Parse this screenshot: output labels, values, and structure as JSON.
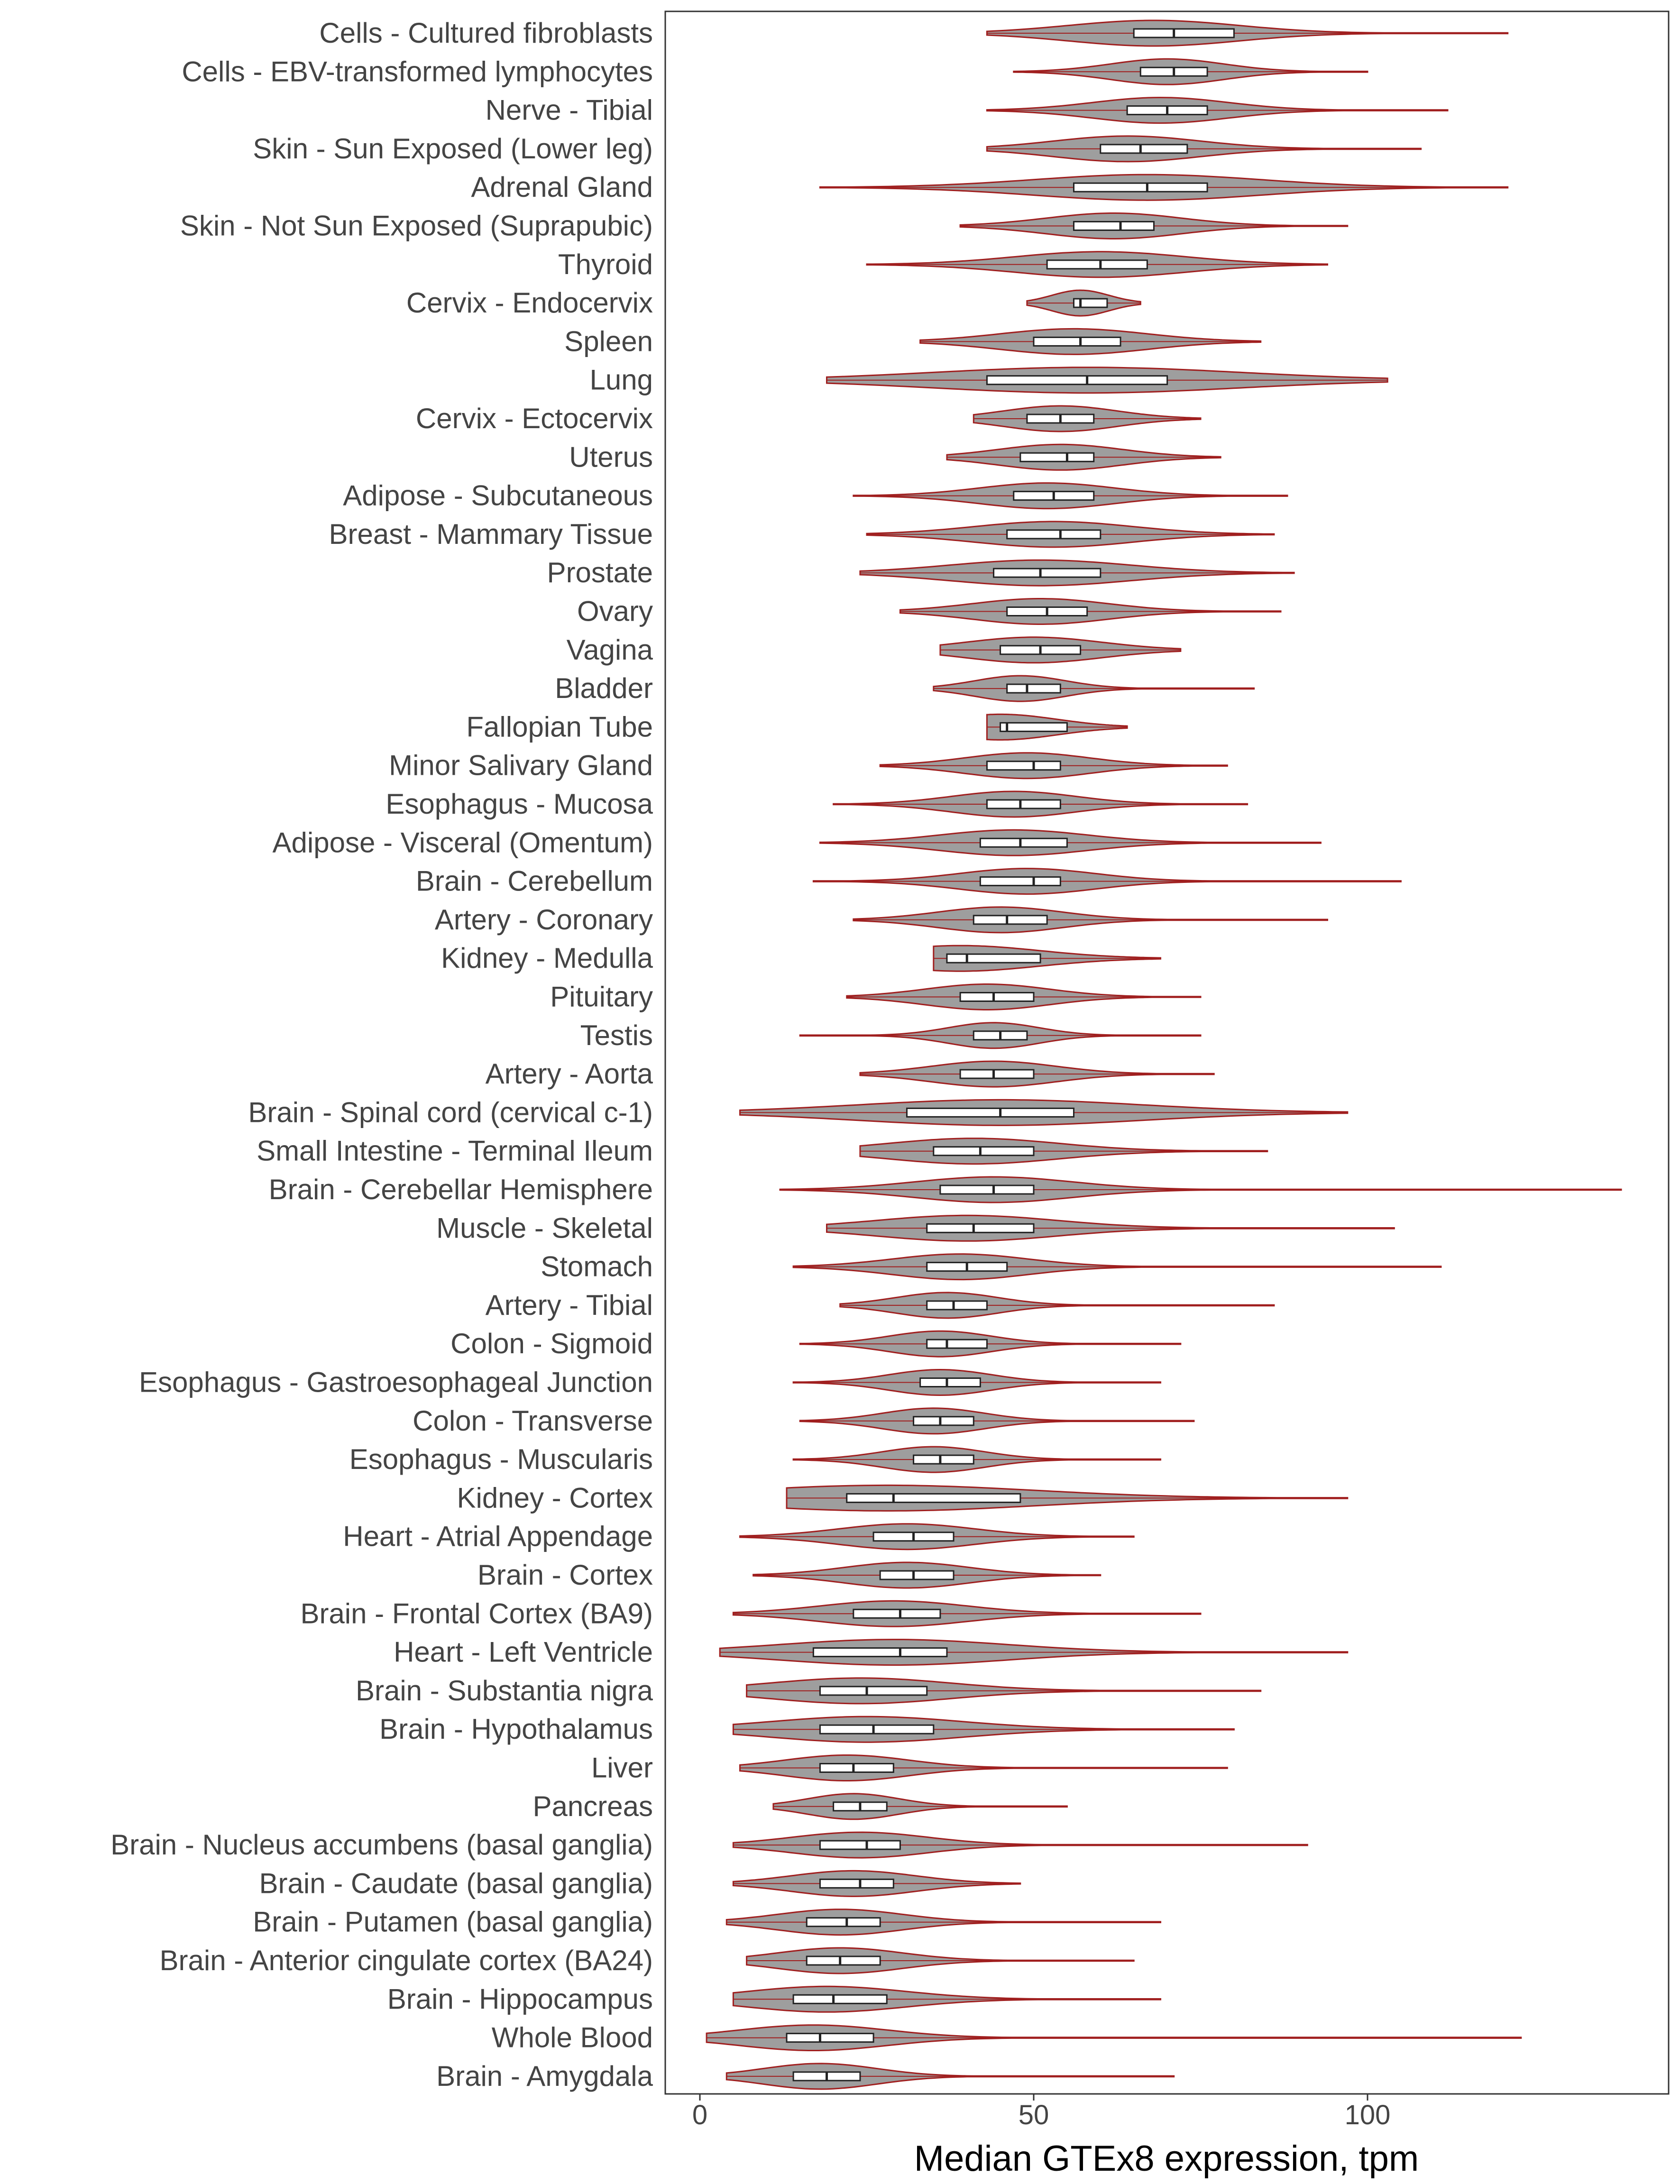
{
  "chart_data": {
    "type": "violin",
    "xlabel": "Median GTEx8 expression, tpm",
    "ylabel": "",
    "xlim": [
      -5,
      143
    ],
    "xticks": [
      0,
      50,
      100
    ],
    "grid": false,
    "colors": {
      "fill": "#9e9e9e",
      "outline": "#a01f1f",
      "box": "#ffffff",
      "text": "#444444",
      "frame": "#333333"
    },
    "series": [
      {
        "tissue": "Cells - Cultured fibroblasts",
        "min": 43,
        "q1": 65,
        "median": 71,
        "q3": 80,
        "max": 121,
        "peak": 68
      },
      {
        "tissue": "Cells - EBV-transformed lymphocytes",
        "min": 47,
        "q1": 66,
        "median": 71,
        "q3": 76,
        "max": 100,
        "peak": 70
      },
      {
        "tissue": "Nerve - Tibial",
        "min": 43,
        "q1": 64,
        "median": 70,
        "q3": 76,
        "max": 112,
        "peak": 69
      },
      {
        "tissue": "Skin - Sun Exposed (Lower leg)",
        "min": 43,
        "q1": 60,
        "median": 66,
        "q3": 73,
        "max": 108,
        "peak": 64
      },
      {
        "tissue": "Adrenal Gland",
        "min": 18,
        "q1": 56,
        "median": 67,
        "q3": 76,
        "max": 121,
        "peak": 67
      },
      {
        "tissue": "Skin - Not Sun Exposed (Suprapubic)",
        "min": 39,
        "q1": 56,
        "median": 63,
        "q3": 68,
        "max": 97,
        "peak": 62
      },
      {
        "tissue": "Thyroid",
        "min": 25,
        "q1": 52,
        "median": 60,
        "q3": 67,
        "max": 94,
        "peak": 60
      },
      {
        "tissue": "Cervix - Endocervix",
        "min": 49,
        "q1": 56,
        "median": 57,
        "q3": 61,
        "max": 66,
        "peak": 57
      },
      {
        "tissue": "Spleen",
        "min": 33,
        "q1": 50,
        "median": 57,
        "q3": 63,
        "max": 84,
        "peak": 56
      },
      {
        "tissue": "Lung",
        "min": 19,
        "q1": 43,
        "median": 58,
        "q3": 70,
        "max": 103,
        "peak": 58
      },
      {
        "tissue": "Cervix - Ectocervix",
        "min": 41,
        "q1": 49,
        "median": 54,
        "q3": 59,
        "max": 75,
        "peak": 54
      },
      {
        "tissue": "Uterus",
        "min": 37,
        "q1": 48,
        "median": 55,
        "q3": 59,
        "max": 78,
        "peak": 54
      },
      {
        "tissue": "Adipose - Subcutaneous",
        "min": 23,
        "q1": 47,
        "median": 53,
        "q3": 59,
        "max": 88,
        "peak": 52
      },
      {
        "tissue": "Breast - Mammary Tissue",
        "min": 25,
        "q1": 46,
        "median": 54,
        "q3": 60,
        "max": 86,
        "peak": 53
      },
      {
        "tissue": "Prostate",
        "min": 24,
        "q1": 44,
        "median": 51,
        "q3": 60,
        "max": 89,
        "peak": 51
      },
      {
        "tissue": "Ovary",
        "min": 30,
        "q1": 46,
        "median": 52,
        "q3": 58,
        "max": 87,
        "peak": 51
      },
      {
        "tissue": "Vagina",
        "min": 36,
        "q1": 45,
        "median": 51,
        "q3": 57,
        "max": 72,
        "peak": 50
      },
      {
        "tissue": "Bladder",
        "min": 35,
        "q1": 46,
        "median": 49,
        "q3": 54,
        "max": 83,
        "peak": 48
      },
      {
        "tissue": "Fallopian Tube",
        "min": 43,
        "q1": 45,
        "median": 46,
        "q3": 55,
        "max": 64,
        "peak": 45
      },
      {
        "tissue": "Minor Salivary Gland",
        "min": 27,
        "q1": 43,
        "median": 50,
        "q3": 54,
        "max": 79,
        "peak": 49
      },
      {
        "tissue": "Esophagus - Mucosa",
        "min": 20,
        "q1": 43,
        "median": 48,
        "q3": 54,
        "max": 82,
        "peak": 47
      },
      {
        "tissue": "Adipose - Visceral (Omentum)",
        "min": 18,
        "q1": 42,
        "median": 48,
        "q3": 55,
        "max": 93,
        "peak": 47
      },
      {
        "tissue": "Brain - Cerebellum",
        "min": 17,
        "q1": 42,
        "median": 50,
        "q3": 54,
        "max": 105,
        "peak": 49
      },
      {
        "tissue": "Artery - Coronary",
        "min": 23,
        "q1": 41,
        "median": 46,
        "q3": 52,
        "max": 94,
        "peak": 45
      },
      {
        "tissue": "Kidney - Medulla",
        "min": 35,
        "q1": 37,
        "median": 40,
        "q3": 51,
        "max": 69,
        "peak": 39
      },
      {
        "tissue": "Pituitary",
        "min": 22,
        "q1": 39,
        "median": 44,
        "q3": 50,
        "max": 75,
        "peak": 43
      },
      {
        "tissue": "Testis",
        "min": 15,
        "q1": 41,
        "median": 45,
        "q3": 49,
        "max": 75,
        "peak": 44
      },
      {
        "tissue": "Artery - Aorta",
        "min": 24,
        "q1": 39,
        "median": 44,
        "q3": 50,
        "max": 77,
        "peak": 44
      },
      {
        "tissue": "Brain - Spinal cord (cervical c-1)",
        "min": 6,
        "q1": 31,
        "median": 45,
        "q3": 56,
        "max": 97,
        "peak": 45
      },
      {
        "tissue": "Small Intestine - Terminal Ileum",
        "min": 24,
        "q1": 35,
        "median": 42,
        "q3": 50,
        "max": 85,
        "peak": 41
      },
      {
        "tissue": "Brain - Cerebellar Hemisphere",
        "min": 12,
        "q1": 36,
        "median": 44,
        "q3": 50,
        "max": 138,
        "peak": 44
      },
      {
        "tissue": "Muscle - Skeletal",
        "min": 19,
        "q1": 34,
        "median": 41,
        "q3": 50,
        "max": 104,
        "peak": 40
      },
      {
        "tissue": "Stomach",
        "min": 14,
        "q1": 34,
        "median": 40,
        "q3": 46,
        "max": 111,
        "peak": 39
      },
      {
        "tissue": "Artery - Tibial",
        "min": 21,
        "q1": 34,
        "median": 38,
        "q3": 43,
        "max": 86,
        "peak": 37
      },
      {
        "tissue": "Colon - Sigmoid",
        "min": 15,
        "q1": 34,
        "median": 37,
        "q3": 43,
        "max": 72,
        "peak": 36
      },
      {
        "tissue": "Esophagus - Gastroesophageal Junction",
        "min": 14,
        "q1": 33,
        "median": 37,
        "q3": 42,
        "max": 69,
        "peak": 36
      },
      {
        "tissue": "Colon - Transverse",
        "min": 15,
        "q1": 32,
        "median": 36,
        "q3": 41,
        "max": 74,
        "peak": 35
      },
      {
        "tissue": "Esophagus - Muscularis",
        "min": 14,
        "q1": 32,
        "median": 36,
        "q3": 41,
        "max": 69,
        "peak": 35
      },
      {
        "tissue": "Kidney - Cortex",
        "min": 13,
        "q1": 22,
        "median": 29,
        "q3": 48,
        "max": 97,
        "peak": 28
      },
      {
        "tissue": "Heart - Atrial Appendage",
        "min": 6,
        "q1": 26,
        "median": 32,
        "q3": 38,
        "max": 65,
        "peak": 31
      },
      {
        "tissue": "Brain - Cortex",
        "min": 8,
        "q1": 27,
        "median": 32,
        "q3": 38,
        "max": 60,
        "peak": 31
      },
      {
        "tissue": "Brain - Frontal Cortex (BA9)",
        "min": 5,
        "q1": 23,
        "median": 30,
        "q3": 36,
        "max": 75,
        "peak": 29
      },
      {
        "tissue": "Heart - Left Ventricle",
        "min": 3,
        "q1": 17,
        "median": 30,
        "q3": 37,
        "max": 97,
        "peak": 29
      },
      {
        "tissue": "Brain - Substantia nigra",
        "min": 7,
        "q1": 18,
        "median": 25,
        "q3": 34,
        "max": 84,
        "peak": 24
      },
      {
        "tissue": "Brain - Hypothalamus",
        "min": 5,
        "q1": 18,
        "median": 26,
        "q3": 35,
        "max": 80,
        "peak": 25
      },
      {
        "tissue": "Liver",
        "min": 6,
        "q1": 18,
        "median": 23,
        "q3": 29,
        "max": 79,
        "peak": 22
      },
      {
        "tissue": "Pancreas",
        "min": 11,
        "q1": 20,
        "median": 24,
        "q3": 28,
        "max": 55,
        "peak": 23
      },
      {
        "tissue": "Brain - Nucleus accumbens (basal ganglia)",
        "min": 5,
        "q1": 18,
        "median": 25,
        "q3": 30,
        "max": 91,
        "peak": 24
      },
      {
        "tissue": "Brain - Caudate (basal ganglia)",
        "min": 5,
        "q1": 18,
        "median": 24,
        "q3": 29,
        "max": 48,
        "peak": 23
      },
      {
        "tissue": "Brain - Putamen (basal ganglia)",
        "min": 4,
        "q1": 16,
        "median": 22,
        "q3": 27,
        "max": 69,
        "peak": 21
      },
      {
        "tissue": "Brain - Anterior cingulate cortex (BA24)",
        "min": 7,
        "q1": 16,
        "median": 21,
        "q3": 27,
        "max": 65,
        "peak": 21
      },
      {
        "tissue": "Brain - Hippocampus",
        "min": 5,
        "q1": 14,
        "median": 20,
        "q3": 28,
        "max": 69,
        "peak": 19
      },
      {
        "tissue": "Whole Blood",
        "min": 1,
        "q1": 13,
        "median": 18,
        "q3": 26,
        "max": 123,
        "peak": 17
      },
      {
        "tissue": "Brain - Amygdala",
        "min": 4,
        "q1": 14,
        "median": 19,
        "q3": 24,
        "max": 71,
        "peak": 18
      }
    ]
  }
}
